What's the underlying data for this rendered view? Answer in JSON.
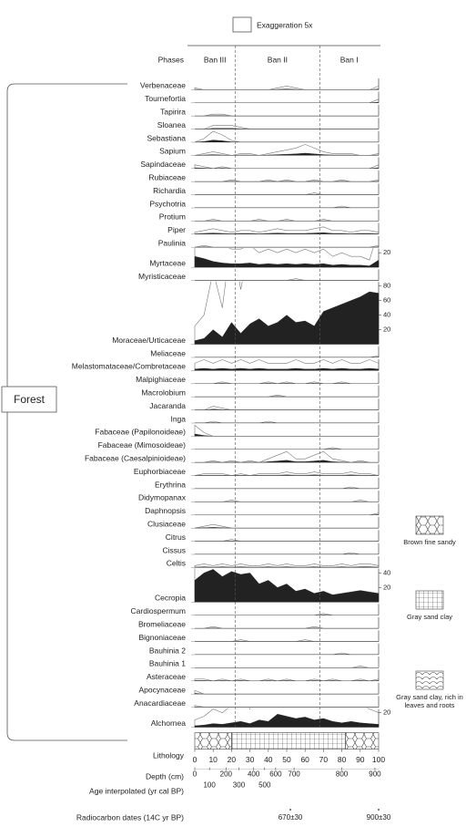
{
  "chart_data": {
    "type": "pollen",
    "exaggeration_label": "Exaggeration 5x",
    "exaggeration": 5,
    "phases_label": "Phases",
    "phases": [
      {
        "name": "Ban III",
        "from": 0,
        "to": 22
      },
      {
        "name": "Ban II",
        "from": 22,
        "to": 68
      },
      {
        "name": "Ban I",
        "from": 68,
        "to": 100
      }
    ],
    "group_label": "Forest",
    "x": [
      0,
      5,
      10,
      15,
      20,
      25,
      30,
      35,
      40,
      45,
      50,
      55,
      60,
      65,
      70,
      75,
      80,
      85,
      90,
      95,
      100
    ],
    "xlim": [
      0,
      100
    ],
    "xticks": [
      0,
      10,
      20,
      30,
      40,
      50,
      60,
      70,
      80,
      90,
      100
    ],
    "x_label": "Depth (cm)",
    "taxa": [
      {
        "name": "Verbenaceae",
        "values": [
          0.5,
          0,
          0,
          0,
          0,
          0,
          0,
          0,
          0,
          0.5,
          1,
          0.5,
          0,
          0,
          0,
          0,
          0,
          0,
          0,
          0,
          1
        ]
      },
      {
        "name": "Tournefortia",
        "values": [
          0,
          0,
          0,
          0,
          0,
          0,
          0,
          0,
          0,
          0,
          0,
          0,
          0,
          0,
          0,
          0,
          0,
          0,
          0,
          0,
          1
        ]
      },
      {
        "name": "Tapirira",
        "values": [
          0,
          0,
          0.5,
          0.5,
          0,
          0,
          0,
          0,
          0,
          0,
          0,
          0,
          0,
          0,
          0,
          0,
          0,
          0,
          0,
          0,
          0
        ]
      },
      {
        "name": "Sloanea",
        "values": [
          0,
          0,
          1,
          1,
          1,
          0.5,
          0,
          0,
          0,
          0,
          0,
          0,
          0,
          0,
          0,
          0,
          0,
          0,
          0,
          0,
          0
        ]
      },
      {
        "name": "Sebastiana",
        "values": [
          0,
          1,
          3,
          2,
          0.5,
          0,
          0,
          0,
          0,
          0,
          0,
          0,
          0,
          0,
          0,
          0,
          0,
          0,
          0,
          0,
          0
        ]
      },
      {
        "name": "Sapium",
        "values": [
          0,
          0.5,
          1,
          0.5,
          0,
          0.5,
          0.5,
          0,
          0.5,
          1,
          1.5,
          2,
          3,
          2,
          1,
          0.5,
          0.5,
          0.5,
          0,
          0,
          0.5
        ]
      },
      {
        "name": "Sapindaceae",
        "values": [
          1,
          0.5,
          0,
          0.5,
          0,
          0,
          0,
          0,
          0,
          0,
          0,
          0,
          0,
          0,
          0,
          0,
          0,
          0,
          0,
          0,
          1
        ]
      },
      {
        "name": "Rubiaceae",
        "values": [
          0,
          0,
          0,
          0,
          0.5,
          0,
          0,
          0,
          0.5,
          0,
          0.5,
          0,
          0,
          0.5,
          0,
          0,
          0.5,
          0,
          0,
          0,
          0.5
        ]
      },
      {
        "name": "Richardia",
        "values": [
          0,
          0,
          0,
          0,
          0,
          0,
          0,
          0,
          0,
          0,
          0,
          0,
          0,
          0.5,
          0,
          0,
          0,
          0,
          0,
          0,
          0
        ]
      },
      {
        "name": "Psychotria",
        "values": [
          0,
          0,
          0,
          0,
          0,
          0,
          0,
          0,
          0,
          0,
          0,
          0,
          0,
          0,
          0,
          0,
          0.5,
          0,
          0,
          0,
          0
        ]
      },
      {
        "name": "Protium",
        "values": [
          0,
          0,
          0.5,
          0,
          0,
          0,
          0,
          0.5,
          0,
          0,
          0.5,
          0,
          0,
          0,
          0.5,
          0,
          0,
          0,
          0,
          0,
          0
        ]
      },
      {
        "name": "Piper",
        "values": [
          0.5,
          1,
          1.5,
          1,
          0.5,
          1,
          1,
          0.5,
          1,
          1.5,
          1,
          1,
          1,
          1.5,
          2,
          1,
          1,
          0.5,
          1,
          1,
          0.5
        ]
      },
      {
        "name": "Paulinia",
        "values": [
          0,
          0.5,
          0,
          0,
          0,
          0,
          0,
          0,
          0,
          0,
          0,
          0,
          0,
          0,
          0,
          0,
          0,
          0,
          0,
          0,
          0.5
        ]
      },
      {
        "name": "Myrtaceae",
        "values": [
          15,
          12,
          8,
          6,
          5,
          5,
          6,
          4,
          5,
          4,
          5,
          4,
          5,
          4,
          5,
          3,
          4,
          3,
          3,
          2,
          10
        ],
        "ticks": [
          20
        ]
      },
      {
        "name": "Myristicaceae",
        "values": [
          0,
          0,
          0,
          0,
          0,
          0,
          0,
          0,
          0,
          0,
          0,
          0.5,
          0,
          0,
          0,
          0,
          0,
          0,
          0,
          0,
          0
        ]
      },
      {
        "name": "Moraceae/Urticaceae",
        "values": [
          5,
          8,
          20,
          10,
          30,
          15,
          28,
          35,
          25,
          30,
          40,
          30,
          32,
          25,
          45,
          50,
          55,
          60,
          65,
          72,
          70
        ],
        "ticks": [
          20,
          40,
          60,
          80
        ]
      },
      {
        "name": "Meliaceae",
        "values": [
          0,
          0,
          0,
          0,
          0,
          0,
          0,
          0,
          0,
          0,
          0,
          0,
          0,
          0,
          0,
          0,
          0,
          0,
          0,
          0,
          0.5
        ]
      },
      {
        "name": "Melastomataceae/Combretaceae",
        "values": [
          2,
          3,
          2,
          3,
          2,
          3,
          2,
          3,
          2,
          2,
          2,
          3,
          2,
          2,
          3,
          2,
          3,
          2,
          2,
          3,
          2
        ]
      },
      {
        "name": "Malpighiaceae",
        "values": [
          0,
          0,
          0,
          0.5,
          0,
          0,
          0,
          0,
          0.5,
          0,
          0.5,
          0,
          0,
          0.5,
          0,
          0,
          0.5,
          0,
          0,
          0,
          0
        ]
      },
      {
        "name": "Macrolobium",
        "values": [
          0,
          0,
          0,
          0,
          0,
          0,
          0,
          0,
          0,
          0.5,
          0,
          0,
          0,
          0,
          0,
          0,
          0,
          0,
          0,
          0,
          0
        ]
      },
      {
        "name": "Jacaranda",
        "values": [
          0,
          0,
          1,
          0.5,
          0,
          0,
          0,
          0,
          0,
          0,
          0,
          0,
          0,
          0,
          0,
          0,
          0,
          0,
          0,
          0,
          0
        ]
      },
      {
        "name": "Inga",
        "values": [
          0,
          0,
          0.5,
          0,
          0,
          0,
          0,
          0,
          0.5,
          0,
          0,
          0,
          0,
          0,
          0,
          0,
          0,
          0,
          0,
          0,
          0
        ]
      },
      {
        "name": "Fabaceae (Papilonoideae)",
        "values": [
          3,
          1,
          0,
          0,
          0,
          0,
          0,
          0,
          0,
          0,
          0,
          0,
          0,
          0,
          0,
          0,
          0,
          0,
          0,
          0,
          0
        ]
      },
      {
        "name": "Fabaceae (Mimosoideae)",
        "values": [
          0,
          0,
          0,
          0,
          0,
          0,
          0,
          0,
          0,
          0,
          0,
          0,
          0,
          0,
          0,
          0.5,
          0,
          0,
          0,
          0,
          0
        ]
      },
      {
        "name": "Fabaceae (Caesalpinioideae)",
        "values": [
          0,
          0,
          0.5,
          0,
          0.5,
          0,
          0.5,
          0,
          1,
          2,
          3,
          1,
          1,
          2,
          3,
          1,
          0.5,
          0,
          0.5,
          0,
          0
        ]
      },
      {
        "name": "Euphorbiaceae",
        "values": [
          0,
          0.5,
          0.5,
          0.5,
          0,
          0.5,
          0,
          0.5,
          0.5,
          0.5,
          1,
          0.5,
          0.5,
          1,
          0.5,
          0.5,
          0.5,
          1,
          0.5,
          0.5,
          0
        ]
      },
      {
        "name": "Erythrina",
        "values": [
          0,
          0,
          0,
          0,
          0,
          0,
          0,
          0,
          0,
          0,
          0,
          0,
          0,
          0,
          0,
          0,
          0,
          0.5,
          0,
          0,
          0
        ]
      },
      {
        "name": "Didymopanax",
        "values": [
          0,
          0,
          0,
          0,
          0.5,
          0,
          0,
          0,
          0,
          0,
          0,
          0,
          0,
          0,
          0,
          0,
          0,
          0,
          0.5,
          0,
          0
        ]
      },
      {
        "name": "Daphnopsis",
        "values": [
          0,
          0,
          0,
          0,
          0,
          0,
          0,
          0,
          0,
          0,
          0,
          0,
          0,
          0,
          0,
          0,
          0,
          0,
          0,
          0,
          0.5
        ]
      },
      {
        "name": "Clusiaceae",
        "values": [
          0,
          0.5,
          1,
          0.5,
          0,
          0,
          0,
          0,
          0,
          0,
          0,
          0,
          0,
          0,
          0,
          0,
          0,
          0,
          0,
          0,
          0
        ]
      },
      {
        "name": "Citrus",
        "values": [
          0,
          0,
          0,
          0,
          0.5,
          0,
          0,
          0,
          0,
          0,
          0,
          0,
          0,
          0,
          0,
          0,
          0,
          0,
          0,
          0,
          0
        ]
      },
      {
        "name": "Cissus",
        "values": [
          0,
          0,
          0,
          0,
          0,
          0,
          0,
          0,
          0,
          0,
          0,
          0,
          0,
          0,
          0,
          0,
          0,
          0.5,
          0,
          0,
          0
        ]
      },
      {
        "name": "Celtis",
        "values": [
          0.5,
          1,
          0.5,
          1,
          0.5,
          1,
          0.5,
          0.5,
          1,
          0.5,
          1,
          0.5,
          0.5,
          1,
          0.5,
          0.5,
          1,
          0.5,
          1,
          1,
          0.5
        ]
      },
      {
        "name": "Cecropia",
        "values": [
          30,
          40,
          45,
          35,
          42,
          38,
          40,
          25,
          30,
          20,
          25,
          15,
          18,
          12,
          15,
          10,
          12,
          14,
          16,
          14,
          12
        ],
        "ticks": [
          20,
          40
        ]
      },
      {
        "name": "Cardiospermum",
        "values": [
          0,
          0,
          0,
          0,
          0,
          0,
          0,
          0,
          0,
          0,
          0,
          0,
          0,
          0,
          0.5,
          0,
          0,
          0,
          0,
          0,
          0
        ]
      },
      {
        "name": "Bromeliaceae",
        "values": [
          0,
          0,
          0.5,
          0,
          0,
          0,
          0,
          0,
          0,
          0,
          0,
          0,
          0,
          0.5,
          0,
          0,
          0,
          0,
          0,
          0,
          0
        ]
      },
      {
        "name": "Bignoniaceae",
        "values": [
          0,
          0,
          0,
          0,
          0,
          0.5,
          0,
          0,
          0,
          0,
          0,
          0,
          0.5,
          0,
          0,
          0,
          0,
          0,
          0,
          0,
          0
        ]
      },
      {
        "name": "Bauhinia 2",
        "values": [
          0,
          0,
          0,
          0,
          0,
          0,
          0,
          0,
          0,
          0,
          0,
          0,
          0,
          0,
          0,
          0,
          0.5,
          0,
          0,
          0,
          0
        ]
      },
      {
        "name": "Bauhinia 1",
        "values": [
          0,
          0,
          0,
          0,
          0,
          0,
          0,
          0,
          0,
          0,
          0,
          0,
          0,
          0,
          0,
          0,
          0,
          0,
          0.5,
          0,
          0
        ]
      },
      {
        "name": "Asteraceae",
        "values": [
          0.5,
          0.5,
          0,
          0.5,
          0,
          0.5,
          0,
          0,
          0.5,
          0,
          0.5,
          0,
          0,
          0.5,
          0,
          0.5,
          0,
          0,
          0.5,
          0,
          0.5
        ]
      },
      {
        "name": "Apocynaceae",
        "values": [
          1,
          0,
          0,
          0,
          0,
          0,
          0,
          0,
          0,
          0,
          0,
          0,
          0,
          0,
          0,
          0,
          0,
          0,
          0,
          0,
          0
        ]
      },
      {
        "name": "Anacardiaceae",
        "values": [
          0.5,
          0,
          0,
          0,
          0,
          0,
          0,
          0,
          0,
          0,
          0,
          0,
          0,
          0,
          0,
          0,
          0,
          0,
          0,
          0,
          0
        ]
      },
      {
        "name": "Alchornea",
        "values": [
          2,
          3,
          5,
          4,
          6,
          8,
          5,
          10,
          8,
          18,
          15,
          12,
          14,
          10,
          12,
          8,
          6,
          8,
          6,
          5,
          4
        ],
        "ticks": [
          20
        ]
      }
    ],
    "lithology_label": "Lithology",
    "lithology_legend": [
      {
        "name": "Brown fine sandy",
        "pattern": "hex"
      },
      {
        "name": "Gray sand clay",
        "pattern": "grid"
      },
      {
        "name": "Gray sand clay, rich in leaves and roots",
        "pattern": "scales"
      }
    ],
    "lithology": [
      {
        "from": 0,
        "to": 20,
        "pattern": "hex"
      },
      {
        "from": 20,
        "to": 82,
        "pattern": "grid"
      },
      {
        "from": 82,
        "to": 100,
        "pattern": "hex"
      }
    ],
    "age_axis": {
      "label": "Age interpolated (yr cal BP)",
      "ages": [
        0,
        100,
        200,
        300,
        400,
        500,
        600,
        700,
        800,
        900
      ],
      "depths": [
        0,
        8,
        17,
        24,
        32,
        38,
        44,
        54,
        80,
        98
      ]
    },
    "radiocarbon": {
      "label": "Radiocarbon dates (14C yr BP)",
      "dates": [
        {
          "label": "670±30",
          "depth": 52
        },
        {
          "label": "900±30",
          "depth": 100
        }
      ]
    }
  }
}
